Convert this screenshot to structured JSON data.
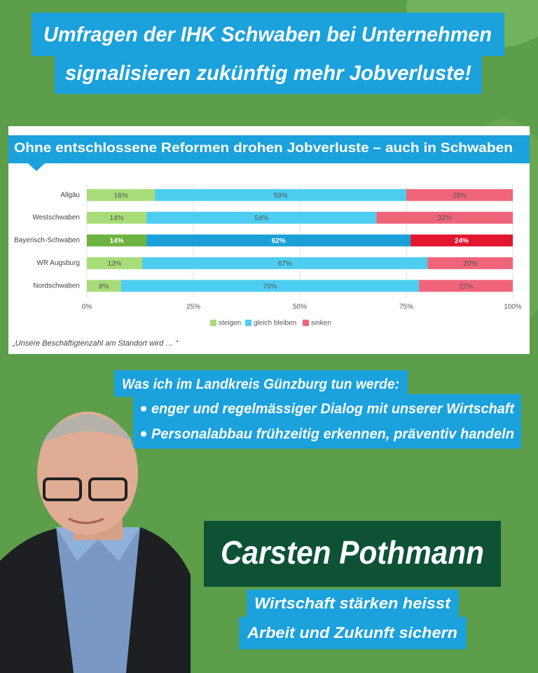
{
  "header": {
    "lines": [
      "Umfragen der IHK Schwaben bei Unternehmen",
      "signalisieren zukünftig mehr Jobverluste!"
    ]
  },
  "chart_data": {
    "type": "stacked-barh",
    "title": "Ohne entschlossene Reformen drohen Jobverluste – auch in Schwaben",
    "categories": [
      "Allgäu",
      "Westschwaben",
      "Bayerisch-Schwaben",
      "WR Augsburg",
      "Nordschwaben"
    ],
    "series": [
      {
        "name": "steigen",
        "color": "#a8dc78",
        "colors": [
          "#a8dc78",
          "#a8dc78",
          "#6db33f",
          "#a8dc78",
          "#a8dc78"
        ],
        "values": [
          16,
          14,
          14,
          13,
          8
        ],
        "value_labels": [
          "16%",
          "14%",
          "14%",
          "13%",
          "8%"
        ]
      },
      {
        "name": "gleich bleiben",
        "color": "#4dcdf0",
        "colors": [
          "#4dcdf0",
          "#4dcdf0",
          "#1a9fd8",
          "#4dcdf0",
          "#4dcdf0"
        ],
        "values": [
          59,
          54,
          62,
          67,
          70
        ],
        "value_labels": [
          "59%",
          "54%",
          "62%",
          "67%",
          "70%"
        ]
      },
      {
        "name": "sinken",
        "color": "#f0647a",
        "colors": [
          "#f0647a",
          "#f0647a",
          "#e2162f",
          "#f0647a",
          "#f0647a"
        ],
        "values": [
          25,
          32,
          24,
          20,
          22
        ],
        "value_labels": [
          "25%",
          "32%",
          "24%",
          "20%",
          "22%"
        ]
      }
    ],
    "xlim": [
      0,
      100
    ],
    "xticks": [
      {
        "value": 0,
        "label": "0%"
      },
      {
        "value": 25,
        "label": "25%"
      },
      {
        "value": 50,
        "label": "50%"
      },
      {
        "value": 75,
        "label": "75%"
      },
      {
        "value": 100,
        "label": "100%"
      }
    ],
    "grid": true,
    "legend": "bottom",
    "footnote": "„Unsere Beschäftigtenzahl am Standort wird … “"
  },
  "plan": {
    "title": "Was ich im Landkreis Günzburg tun werde:",
    "bullets": [
      "enger und regelmässiger Dialog mit unserer Wirtschaft",
      "Personalabbau frühzeitig erkennen, präventiv handeln"
    ]
  },
  "candidate": {
    "name": "Carsten Pothmann",
    "slogan": [
      "Wirtschaft stärken heisst",
      "Arbeit und Zukunft sichern"
    ]
  }
}
